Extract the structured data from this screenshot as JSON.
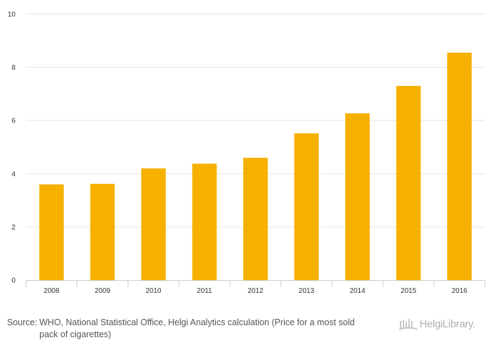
{
  "chart_data": {
    "type": "bar",
    "categories": [
      "2008",
      "2009",
      "2010",
      "2011",
      "2012",
      "2013",
      "2014",
      "2015",
      "2016"
    ],
    "values": [
      3.6,
      3.62,
      4.2,
      4.38,
      4.6,
      5.52,
      6.27,
      7.3,
      8.55
    ],
    "ylim": [
      0,
      10
    ],
    "yticks": [
      0,
      2,
      4,
      6,
      8,
      10
    ],
    "title": "",
    "xlabel": "",
    "ylabel": "",
    "grid": true,
    "bar_color": "#f6b000",
    "grid_color": "#e6e6e6"
  },
  "footer": {
    "source_label": "Source:",
    "source_text": "WHO, National Statistical Office, Helgi Analytics calculation (Price for a most sold pack of cigarettes)",
    "logo_text": "HelgiLibrary."
  }
}
